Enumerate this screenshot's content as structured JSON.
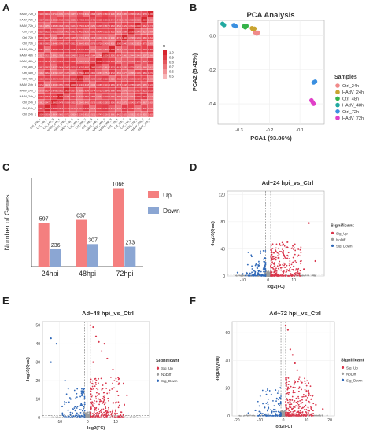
{
  "panel_labels": {
    "a": "A",
    "b": "B",
    "c": "C",
    "d": "D",
    "e": "E",
    "f": "F"
  },
  "chart_data": [
    {
      "id": "heatmap",
      "type": "heatmap",
      "title": "",
      "row_labels": [
        "HAdV_72h_3",
        "HAdV_72h_2",
        "HAdV_72h_1",
        "Ctrl_72h_3",
        "Ctrl_72h_2",
        "Ctrl_72h_1",
        "HAdV_48h_3",
        "HAdV_48h_2",
        "HAdV_48h_1",
        "Ctrl_48h_3",
        "Ctrl_48h_2",
        "Ctrl_48h_1",
        "HAdV_24h_3",
        "HAdV_24h_2",
        "HAdV_24h_1",
        "Ctrl_24h_3",
        "Ctrl_24h_2",
        "Ctrl_24h_1"
      ],
      "col_labels": [
        "Ctrl_24h_1",
        "Ctrl_24h_2",
        "Ctrl_24h_3",
        "HAdV_24h_1",
        "HAdV_24h_2",
        "HAdV_24h_3",
        "Ctrl_48h_1",
        "Ctrl_48h_2",
        "Ctrl_48h_3",
        "HAdV_48h_1",
        "HAdV_48h_2",
        "HAdV_48h_3",
        "Ctrl_72h_1",
        "Ctrl_72h_2",
        "Ctrl_72h_3",
        "HAdV_72h_1",
        "HAdV_72h_2",
        "HAdV_72h_3"
      ],
      "legend_title": "R",
      "legend_ticks": [
        "1.0",
        "0.9",
        "0.8",
        "0.7",
        "0.6",
        "0.5"
      ],
      "value_range": [
        0.5,
        1.0
      ],
      "cell_text_min": 0.92,
      "cell_text_max": 0.99
    },
    {
      "id": "pca",
      "type": "scatter",
      "title": "PCA Analysis",
      "xlabel": "PCA1 (93.86%)",
      "ylabel": "PCA2 (5.42%)",
      "xticks": [
        "-0.3",
        "-0.2",
        "-0.1"
      ],
      "yticks": [
        "0.0",
        "-0.2",
        "-0.4"
      ],
      "xlim": [
        -0.37,
        -0.02
      ],
      "ylim": [
        -0.52,
        0.09
      ],
      "legend_title": "Samples",
      "series": [
        {
          "name": "Ctrl_24h",
          "color": "#f08a8a",
          "points": [
            [
              -0.248,
              0.02
            ],
            [
              -0.242,
              0.013
            ],
            [
              -0.238,
              0.018
            ]
          ]
        },
        {
          "name": "HAdV_24h",
          "color": "#c9a431",
          "points": [
            [
              -0.258,
              0.045
            ],
            [
              -0.255,
              0.038
            ],
            [
              -0.25,
              0.042
            ]
          ]
        },
        {
          "name": "Ctrl_48h",
          "color": "#35b34a",
          "points": [
            [
              -0.285,
              0.055
            ],
            [
              -0.28,
              0.05
            ],
            [
              -0.276,
              0.058
            ]
          ]
        },
        {
          "name": "HAdV_48h",
          "color": "#22a9a0",
          "points": [
            [
              -0.355,
              0.07
            ],
            [
              -0.35,
              0.063
            ]
          ]
        },
        {
          "name": "Ctrl_72h",
          "color": "#3a8fe0",
          "points": [
            [
              -0.318,
              0.062
            ],
            [
              -0.312,
              0.056
            ],
            [
              -0.055,
              -0.275
            ],
            [
              -0.05,
              -0.27
            ]
          ]
        },
        {
          "name": "HAdV_72h",
          "color": "#e040c8",
          "points": [
            [
              -0.062,
              -0.38
            ],
            [
              -0.058,
              -0.39
            ],
            [
              -0.055,
              -0.4
            ]
          ]
        }
      ]
    },
    {
      "id": "degs",
      "type": "bar",
      "title": "",
      "ylabel": "Number of Genes",
      "categories": [
        "24hpi",
        "48hpi",
        "72hpi"
      ],
      "ylim": [
        0,
        1200
      ],
      "series": [
        {
          "name": "Up",
          "color": "#f47f7f",
          "values": [
            597,
            637,
            1066
          ]
        },
        {
          "name": "Down",
          "color": "#8ba6d3",
          "values": [
            236,
            307,
            273
          ]
        }
      ],
      "data_labels": [
        [
          "597",
          "236"
        ],
        [
          "637",
          "307"
        ],
        [
          "1066",
          "273"
        ]
      ]
    },
    {
      "id": "volcano24",
      "type": "scatter",
      "title": "Ad~24 hpi_vs_Ctrl",
      "xlabel": "log2(FC)",
      "ylabel": "-log10(Qval)",
      "xticks": [
        "-10",
        "0",
        "10"
      ],
      "yticks": [
        "0",
        "40",
        "80",
        "120"
      ],
      "xlim": [
        -16,
        22
      ],
      "ylim": [
        0,
        125
      ],
      "legend_title": "Significant",
      "legend": [
        {
          "name": "Sig_Up",
          "color": "#d9344a"
        },
        {
          "name": "NoDiff",
          "color": "#9c9c9c"
        },
        {
          "name": "Sig_Down",
          "color": "#2f68b8"
        }
      ],
      "up_points": [
        [
          16,
          78
        ],
        [
          18.5,
          22
        ],
        [
          14,
          10
        ],
        [
          10,
          14
        ],
        [
          8,
          8
        ],
        [
          6,
          6
        ],
        [
          12,
          4
        ],
        [
          5,
          12
        ]
      ],
      "down_points": [
        [
          -10,
          3
        ],
        [
          -12,
          5
        ],
        [
          -6,
          2
        ]
      ]
    },
    {
      "id": "volcano48",
      "type": "scatter",
      "title": "Ad~48 hpi_vs_Ctrl",
      "xlabel": "log2(FC)",
      "ylabel": "-log10(Qval)",
      "xticks": [
        "-10",
        "0",
        "10"
      ],
      "yticks": [
        "0",
        "10",
        "20",
        "30",
        "40",
        "50"
      ],
      "xlim": [
        -16,
        22
      ],
      "ylim": [
        0,
        52
      ],
      "legend_title": "Significant",
      "legend": [
        {
          "name": "Sig_Up",
          "color": "#d9344a"
        },
        {
          "name": "NoDiff",
          "color": "#9c9c9c"
        },
        {
          "name": "Sig_Down",
          "color": "#2f68b8"
        }
      ],
      "up_points": [
        [
          1,
          50
        ],
        [
          2,
          49
        ],
        [
          3,
          44
        ],
        [
          4,
          41
        ],
        [
          6,
          40
        ],
        [
          5,
          36
        ],
        [
          7,
          32
        ],
        [
          2,
          30
        ],
        [
          9,
          26
        ],
        [
          11,
          18
        ],
        [
          14,
          12
        ],
        [
          10,
          8
        ]
      ],
      "down_points": [
        [
          -13,
          43
        ],
        [
          -11,
          40
        ],
        [
          -13,
          30
        ],
        [
          -8,
          20
        ],
        [
          -6,
          10
        ],
        [
          -9,
          6
        ]
      ]
    },
    {
      "id": "volcano72",
      "type": "scatter",
      "title": "Ad~72 hpi_vs_Ctrl",
      "xlabel": "log2(FC)",
      "ylabel": "-log10(Qval)",
      "xticks": [
        "-20",
        "-10",
        "0",
        "10",
        "20"
      ],
      "yticks": [
        "0",
        "20",
        "40",
        "60"
      ],
      "xlim": [
        -22,
        22
      ],
      "ylim": [
        0,
        68
      ],
      "legend_title": "Significant",
      "legend": [
        {
          "name": "Sig_Up",
          "color": "#d9344a"
        },
        {
          "name": "NoDiff",
          "color": "#9c9c9c"
        },
        {
          "name": "Sig_Down",
          "color": "#2f68b8"
        }
      ],
      "up_points": [
        [
          1,
          65
        ],
        [
          2,
          62
        ],
        [
          3,
          48
        ],
        [
          4,
          44
        ],
        [
          5,
          38
        ],
        [
          6,
          33
        ],
        [
          7,
          28
        ],
        [
          8,
          24
        ],
        [
          10,
          18
        ],
        [
          12,
          12
        ],
        [
          14,
          8
        ],
        [
          17,
          5
        ]
      ],
      "down_points": [
        [
          -8,
          6
        ],
        [
          -12,
          4
        ],
        [
          -15,
          2
        ],
        [
          -5,
          3
        ]
      ]
    }
  ]
}
